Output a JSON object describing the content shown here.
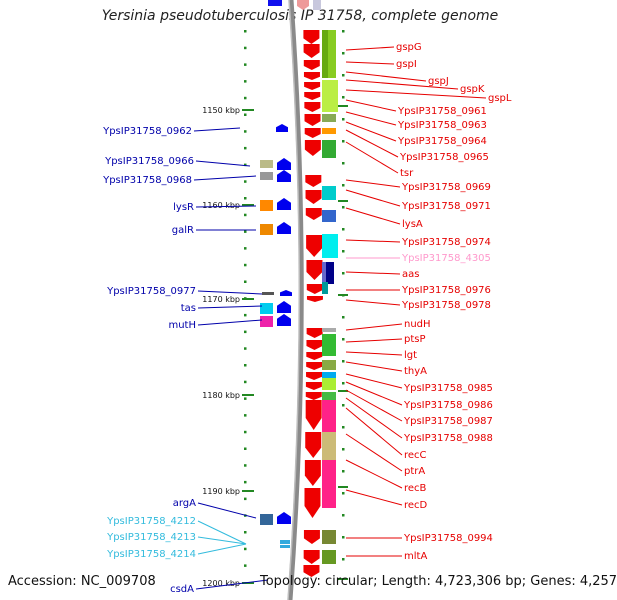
{
  "title": "Yersinia pseudotuberculosis IP 31758, complete genome",
  "footer": {
    "accession": "Accession: NC_009708",
    "topology": "Topology: circular; Length: 4,723,306 bp; Genes: 4,257"
  },
  "colors": {
    "red_label": "#e60000",
    "blue_label": "#0000aa",
    "cyan_label": "#33bbdd",
    "pink_label": "#ff99cc",
    "tick_green": "#228822",
    "backbone": "#777777"
  },
  "scale": {
    "ticks": [
      {
        "label": "1150 kbp",
        "kb": 1150
      },
      {
        "label": "1160 kbp",
        "kb": 1160
      },
      {
        "label": "1170 kbp",
        "kb": 1170
      },
      {
        "label": "1180 kbp",
        "kb": 1180
      },
      {
        "label": "1190 kbp",
        "kb": 1190
      },
      {
        "label": "1200 kbp",
        "kb": 1200
      }
    ]
  },
  "right_genes": [
    {
      "label": "gspG",
      "color": "red"
    },
    {
      "label": "gspI",
      "color": "red"
    },
    {
      "label": "gspJ",
      "color": "red"
    },
    {
      "label": "gspK",
      "color": "red"
    },
    {
      "label": "gspL",
      "color": "red"
    },
    {
      "label": "YpsIP31758_0961",
      "color": "red"
    },
    {
      "label": "YpsIP31758_0963",
      "color": "red"
    },
    {
      "label": "YpsIP31758_0964",
      "color": "red"
    },
    {
      "label": "YpsIP31758_0965",
      "color": "red"
    },
    {
      "label": "tsr",
      "color": "red"
    },
    {
      "label": "YpsIP31758_0969",
      "color": "red"
    },
    {
      "label": "YpsIP31758_0971",
      "color": "red"
    },
    {
      "label": "lysA",
      "color": "red"
    },
    {
      "label": "YpsIP31758_0974",
      "color": "red"
    },
    {
      "label": "YpsIP31758_4305",
      "color": "pink"
    },
    {
      "label": "aas",
      "color": "red"
    },
    {
      "label": "YpsIP31758_0976",
      "color": "red"
    },
    {
      "label": "YpsIP31758_0978",
      "color": "red"
    },
    {
      "label": "nudH",
      "color": "red"
    },
    {
      "label": "ptsP",
      "color": "red"
    },
    {
      "label": "lgt",
      "color": "red"
    },
    {
      "label": "thyA",
      "color": "red"
    },
    {
      "label": "YpsIP31758_0985",
      "color": "red"
    },
    {
      "label": "YpsIP31758_0986",
      "color": "red"
    },
    {
      "label": "YpsIP31758_0987",
      "color": "red"
    },
    {
      "label": "YpsIP31758_0988",
      "color": "red"
    },
    {
      "label": "recC",
      "color": "red"
    },
    {
      "label": "ptrA",
      "color": "red"
    },
    {
      "label": "recB",
      "color": "red"
    },
    {
      "label": "recD",
      "color": "red"
    },
    {
      "label": "YpsIP31758_0994",
      "color": "red"
    },
    {
      "label": "mltA",
      "color": "red"
    }
  ],
  "left_genes": [
    {
      "label": "YpsIP31758_0962",
      "color": "blue"
    },
    {
      "label": "YpsIP31758_0966",
      "color": "blue"
    },
    {
      "label": "YpsIP31758_0968",
      "color": "blue"
    },
    {
      "label": "lysR",
      "color": "blue"
    },
    {
      "label": "galR",
      "color": "blue"
    },
    {
      "label": "YpsIP31758_0977",
      "color": "blue"
    },
    {
      "label": "tas",
      "color": "blue"
    },
    {
      "label": "mutH",
      "color": "blue"
    },
    {
      "label": "argA",
      "color": "blue"
    },
    {
      "label": "YpsIP31758_4212",
      "color": "cyan"
    },
    {
      "label": "YpsIP31758_4213",
      "color": "cyan"
    },
    {
      "label": "YpsIP31758_4214",
      "color": "cyan"
    },
    {
      "label": "csdA",
      "color": "blue"
    }
  ]
}
